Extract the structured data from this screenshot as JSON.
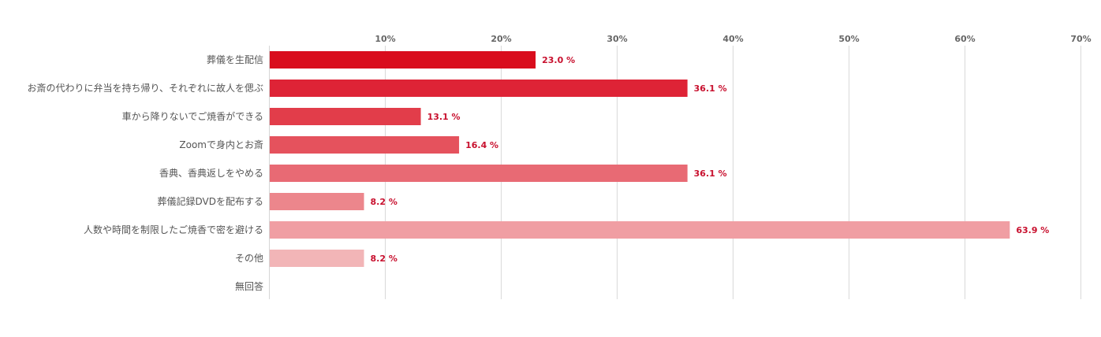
{
  "chart_data": {
    "type": "bar",
    "orientation": "horizontal",
    "categories": [
      "葬儀を生配信",
      "お斎の代わりに弁当を持ち帰り、それぞれに故人を偲ぶ",
      "車から降りないでご焼香ができる",
      "Zoomで身内とお斎",
      "香典、香典返しをやめる",
      "葬儀記録DVDを配布する",
      "人数や時間を制限したご焼香で密を避ける",
      "その他",
      "無回答"
    ],
    "values": [
      23.0,
      36.1,
      13.1,
      16.4,
      36.1,
      8.2,
      63.9,
      8.2,
      null
    ],
    "value_labels": [
      "23.0 %",
      "36.1 %",
      "13.1 %",
      "16.4 %",
      "36.1 %",
      "8.2 %",
      "63.9 %",
      "8.2 %",
      ""
    ],
    "bar_colors": [
      "#d90d1d",
      "#de2336",
      "#e23d4a",
      "#e5525d",
      "#e86a74",
      "#ec868c",
      "#f09ea3",
      "#f2b5b7",
      "#f5c6c8"
    ],
    "xlim": [
      0,
      70
    ],
    "ticks": [
      10,
      20,
      30,
      40,
      50,
      60,
      70
    ],
    "tick_labels": [
      "10%",
      "20%",
      "30%",
      "40%",
      "50%",
      "60%",
      "70%"
    ],
    "grid": true,
    "legend": "none",
    "title": "",
    "xlabel": "",
    "ylabel": ""
  }
}
